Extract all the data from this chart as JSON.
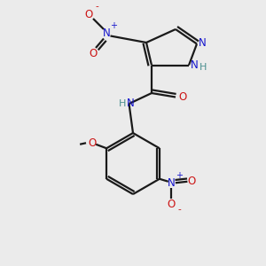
{
  "bg_color": "#ebebeb",
  "bond_color": "#1a1a1a",
  "nitrogen_color": "#1414cc",
  "oxygen_color": "#cc1414",
  "teal_color": "#4a8f8f",
  "figsize": [
    3.0,
    3.0
  ],
  "dpi": 100,
  "xlim": [
    0,
    10
  ],
  "ylim": [
    0,
    10
  ],
  "lw": 1.6,
  "fs": 8.5
}
